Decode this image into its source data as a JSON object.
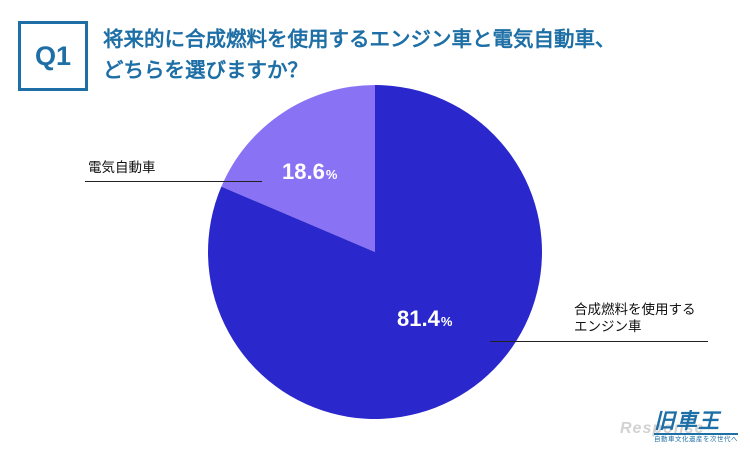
{
  "header": {
    "badge": "Q1",
    "question_line1": "将来的に合成燃料を使用するエンジン車と電気自動車、",
    "question_line2": "どちらを選びますか？"
  },
  "chart_data": {
    "type": "pie",
    "title": "将来的に合成燃料を使用するエンジン車と電気自動車、どちらを選びますか？",
    "slices": [
      {
        "label": "電気自動車",
        "value": 18.6,
        "display": "18.6",
        "unit": "%",
        "color": "#8a72f5"
      },
      {
        "label": "合成燃料を使用するエンジン車",
        "label_line1": "合成燃料を使用する",
        "label_line2": "エンジン車",
        "value": 81.4,
        "display": "81.4",
        "unit": "%",
        "color": "#2a28cc"
      }
    ]
  },
  "branding": {
    "logo_text": "旧車王",
    "logo_tagline": "自動車文化遺産を次世代へ",
    "watermark": "Response"
  }
}
